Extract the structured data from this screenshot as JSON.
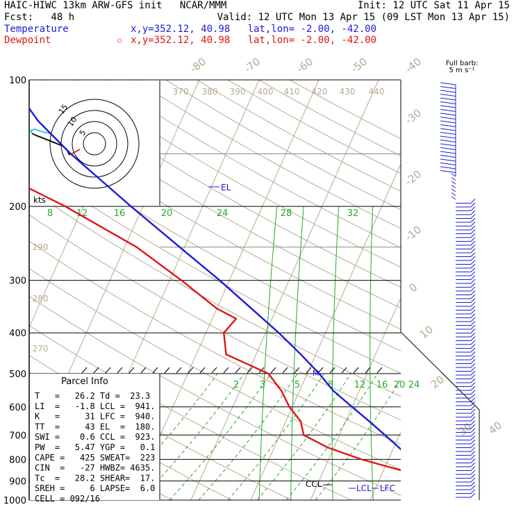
{
  "header": {
    "model": "HAIC-HIWC 13km ARW-GFS init   NCAR/MMM",
    "init": "Init: 12 UTC Sat 11 Apr 15",
    "fcst": "Fcst:   48 h",
    "valid": "Valid: 12 UTC Mon 13 Apr 15 (09 LST Mon 13 Apr 15)",
    "temperature_label": "Temperature",
    "temperature_coords": "x,y=352.12, 40.98   lat,lon= -2.00, -42.00",
    "dewpoint_label": "Dewpoint",
    "dewpoint_coords": "x,y=352.12, 40.98   lat,lon= -2.00, -42.00",
    "star": "✩"
  },
  "colors": {
    "temperature": "#1a1ad8",
    "dewpoint": "#e01414",
    "isotherm": "#b8a890",
    "mixing_ratio": "#22aa22",
    "hodo_low": "#e01414",
    "hodo_mid": "#000000",
    "hodo_high": "#33bbdd"
  },
  "barb_title": [
    "Full barb:",
    "5 m s⁻¹"
  ],
  "hodograph": {
    "unit": "kts",
    "ring_labels": [
      "5",
      "10",
      "15"
    ]
  },
  "markers": {
    "el": "EL",
    "ccl": "CCL",
    "lcl": "LCL",
    "lfc": "LFC",
    "m": "M"
  },
  "parcel_info": {
    "title": "Parcel Info",
    "rows": [
      "T   =   26.2 Td =  23.3",
      "LI  =   -1.8 LCL =  941.",
      "K   =     31 LFC =  940.",
      "TT  =     43 EL  =  180.",
      "SWI =    0.6 CCL =  923.",
      "PW  =   5.47 YGP =   0.1",
      "CAPE =   425 SWEAT=  223",
      "CIN  =   -27 HWBZ= 4635.",
      "Tc  =   28.2 SHEAR=  17.",
      "SREH =     6 LAPSE=  6.0",
      "CELL = 092/16"
    ]
  },
  "chart_data": {
    "type": "line",
    "title": "HAIC-HIWC 13km ARW-GFS init   NCAR/MMM",
    "subtitle": "Valid: 12 UTC Mon 13 Apr 15 (09 LST Mon 13 Apr 15)",
    "y_axis_pressure_labels": [
      "100",
      "200",
      "300",
      "400",
      "500",
      "600",
      "700",
      "800",
      "900",
      "1000"
    ],
    "isotherm_labels": [
      "-80",
      "-70",
      "-60",
      "-50",
      "-40",
      "-30",
      "-20",
      "-10",
      "0",
      "10",
      "20",
      "30",
      "40"
    ],
    "dry_adiabat_labels": [
      "370",
      "380",
      "390",
      "400",
      "410",
      "420",
      "430",
      "440",
      "290",
      "280",
      "270"
    ],
    "mixing_ratio_labels_upper": [
      "8",
      "12",
      "16",
      "20",
      "24",
      "28",
      "32"
    ],
    "mixing_ratio_labels_lower": [
      "2",
      "3",
      "5",
      "8",
      "12",
      "16",
      "20",
      "24"
    ],
    "series": [
      {
        "name": "Temperature",
        "pressure_hPa": [
          985,
          950,
          900,
          850,
          800,
          750,
          700,
          650,
          600,
          550,
          500,
          450,
          400,
          350,
          300,
          250,
          200,
          175,
          150,
          125,
          110,
          100
        ],
        "temperature_C": [
          25.6,
          22.0,
          19.0,
          16.5,
          13.8,
          10.9,
          7.6,
          4.0,
          0.0,
          -4.3,
          -8.0,
          -12.5,
          -17.8,
          -24.2,
          -31.6,
          -40.8,
          -52.0,
          -58.5,
          -66.0,
          -74.0,
          -78.5,
          -80.0
        ]
      },
      {
        "name": "Dewpoint",
        "pressure_hPa": [
          985,
          950,
          900,
          850,
          800,
          750,
          700,
          650,
          600,
          550,
          500,
          450,
          400,
          370,
          350,
          300,
          250,
          200,
          175,
          150,
          125,
          100
        ],
        "temperature_C": [
          23.0,
          22.5,
          19.0,
          13.0,
          5.5,
          -1.0,
          -6.0,
          -7.5,
          -10.5,
          -13.0,
          -16.5,
          -25.0,
          -27.0,
          -26.0,
          -30.0,
          -38.0,
          -48.0,
          -63.0,
          -73.0,
          -85.0,
          -95.0,
          -100.0
        ]
      }
    ]
  }
}
